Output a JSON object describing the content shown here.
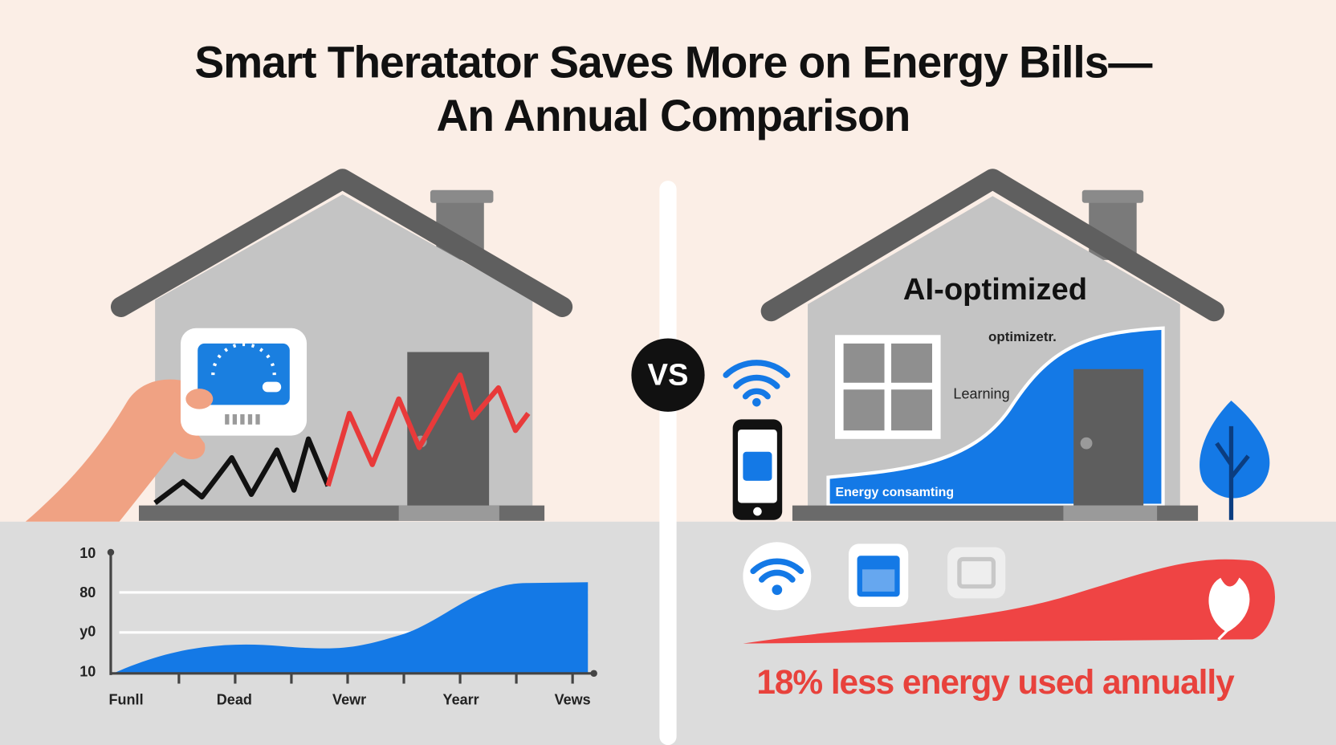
{
  "header": {
    "title_lines": [
      "Smart Theratator Saves More on Energy Bills—",
      "An Annual Comparison"
    ]
  },
  "left_panel": {
    "chart": {
      "y_labels": [
        "10",
        "80",
        "y0",
        "10"
      ],
      "x_labels": [
        "Funll",
        "Dead",
        "Vewr",
        "Yearr",
        "Vews"
      ]
    }
  },
  "divider": {
    "label": "VS"
  },
  "right_panel": {
    "house_label": "AI-optimized",
    "annotations": [
      "optimizetr.",
      "Learning",
      "Energy consamting"
    ],
    "caption": "18% less energy used annually"
  }
}
